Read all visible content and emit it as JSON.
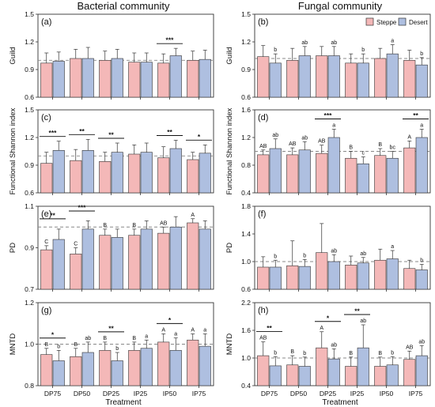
{
  "figure": {
    "col_titles": [
      "Bacterial community",
      "Fungal community"
    ],
    "xlabel": "Treatment",
    "legend": [
      {
        "label": "Steppe",
        "color": "#f4b8b8"
      },
      {
        "label": "Desert",
        "color": "#aebfe0"
      }
    ],
    "colors": {
      "steppe": "#f4b8b8",
      "desert": "#aebfe0",
      "edge": "#333333",
      "reference": "#888888"
    }
  },
  "chart_data": [
    {
      "type": "bar",
      "panel_label": "(a)",
      "ylabel": "Guild",
      "categories": [
        "DP75",
        "DP50",
        "DP25",
        "IP25",
        "IP50",
        "IP75"
      ],
      "ylim": [
        0.6,
        1.5
      ],
      "yticks": [
        0.6,
        0.9,
        1.2,
        1.5
      ],
      "yticklabels": [
        "0.6",
        "0.9",
        "1.2",
        "1.5"
      ],
      "reference": 1.0,
      "series": [
        {
          "name": "Steppe",
          "values": [
            0.97,
            1.02,
            1.0,
            0.98,
            0.97,
            1.0
          ],
          "errors": [
            0.11,
            0.1,
            0.1,
            0.1,
            0.1,
            0.1
          ],
          "letters": [
            "",
            "",
            "",
            "",
            "",
            ""
          ]
        },
        {
          "name": "Desert",
          "values": [
            0.99,
            1.02,
            1.02,
            0.98,
            1.05,
            1.01
          ],
          "errors": [
            0.1,
            0.12,
            0.1,
            0.1,
            0.08,
            0.1
          ],
          "letters": [
            "",
            "",
            "",
            "",
            "",
            ""
          ]
        }
      ],
      "significance": [
        {
          "index": 4,
          "label": "***"
        }
      ]
    },
    {
      "type": "bar",
      "panel_label": "(b)",
      "ylabel": "Guild",
      "categories": [
        "DP75",
        "DP50",
        "DP25",
        "IP25",
        "IP50",
        "IP75"
      ],
      "ylim": [
        0.6,
        1.5
      ],
      "yticks": [
        0.6,
        0.9,
        1.2,
        1.5
      ],
      "yticklabels": [
        "0.6",
        "0.9",
        "1.2",
        "1.5"
      ],
      "reference": 1.02,
      "series": [
        {
          "name": "Steppe",
          "values": [
            1.04,
            1.0,
            1.05,
            0.97,
            1.02,
            1.0
          ],
          "errors": [
            0.12,
            0.13,
            0.1,
            0.1,
            0.11,
            0.11
          ],
          "letters": [
            "",
            "",
            "",
            "",
            "",
            ""
          ]
        },
        {
          "name": "Desert",
          "values": [
            0.97,
            1.05,
            1.05,
            0.97,
            1.07,
            0.95
          ],
          "errors": [
            0.1,
            0.1,
            0.1,
            0.1,
            0.1,
            0.08
          ],
          "letters": [
            "b",
            "ab",
            "ab",
            "b",
            "a",
            "b"
          ]
        }
      ],
      "significance": []
    },
    {
      "type": "bar",
      "panel_label": "(c)",
      "ylabel": "Functional Shannon index",
      "categories": [
        "DP75",
        "DP50",
        "DP25",
        "IP25",
        "IP50",
        "IP75"
      ],
      "ylim": [
        0.6,
        1.5
      ],
      "yticks": [
        0.6,
        0.9,
        1.2,
        1.5
      ],
      "yticklabels": [
        "0.6",
        "0.9",
        "1.2",
        "1.5"
      ],
      "reference": 1.0,
      "series": [
        {
          "name": "Steppe",
          "values": [
            0.92,
            0.95,
            0.94,
            1.02,
            0.98,
            0.96
          ],
          "errors": [
            0.12,
            0.12,
            0.1,
            0.1,
            0.12,
            0.08
          ],
          "letters": [
            "",
            "",
            "",
            "",
            "",
            ""
          ]
        },
        {
          "name": "Desert",
          "values": [
            1.06,
            1.06,
            1.04,
            1.04,
            1.08,
            1.03
          ],
          "errors": [
            0.1,
            0.12,
            0.1,
            0.1,
            0.09,
            0.09
          ],
          "letters": [
            "",
            "",
            "",
            "",
            "",
            ""
          ]
        }
      ],
      "significance": [
        {
          "index": 0,
          "label": "***"
        },
        {
          "index": 1,
          "label": "**"
        },
        {
          "index": 2,
          "label": "**"
        },
        {
          "index": 4,
          "label": "**"
        },
        {
          "index": 5,
          "label": "*"
        }
      ]
    },
    {
      "type": "bar",
      "panel_label": "(d)",
      "ylabel": "Functional Shannon index",
      "categories": [
        "DP75",
        "DP50",
        "DP25",
        "IP25",
        "IP50",
        "IP75"
      ],
      "ylim": [
        0.4,
        1.6
      ],
      "yticks": [
        0.4,
        0.8,
        1.2,
        1.6
      ],
      "yticklabels": [
        "0.4",
        "0.8",
        "1.2",
        "1.6"
      ],
      "reference": 1.0,
      "series": [
        {
          "name": "Steppe",
          "values": [
            0.95,
            0.95,
            0.97,
            0.9,
            0.94,
            1.05
          ],
          "errors": [
            0.07,
            0.1,
            0.12,
            0.1,
            0.1,
            0.1
          ],
          "letters": [
            "AB",
            "AB",
            "AB",
            "B",
            "B",
            "A"
          ]
        },
        {
          "name": "Desert",
          "values": [
            1.04,
            1.02,
            1.2,
            0.82,
            0.9,
            1.2
          ],
          "errors": [
            0.14,
            0.12,
            0.12,
            0.1,
            0.1,
            0.12
          ],
          "letters": [
            "ab",
            "ab",
            "a",
            "c",
            "bc",
            "a"
          ]
        }
      ],
      "significance": [
        {
          "index": 2,
          "label": "***"
        },
        {
          "index": 5,
          "label": "**"
        }
      ]
    },
    {
      "type": "bar",
      "panel_label": "(e)",
      "ylabel": "PD",
      "categories": [
        "DP75",
        "DP50",
        "DP25",
        "IP25",
        "IP50",
        "IP75"
      ],
      "ylim": [
        0.7,
        1.1
      ],
      "yticks": [
        0.7,
        0.9,
        1.1
      ],
      "yticklabels": [
        "0.7",
        "0.9",
        "1.1"
      ],
      "reference": 1.0,
      "series": [
        {
          "name": "Steppe",
          "values": [
            0.89,
            0.87,
            0.96,
            0.96,
            0.97,
            1.02
          ],
          "errors": [
            0.02,
            0.03,
            0.03,
            0.03,
            0.03,
            0.02
          ],
          "letters": [
            "C",
            "C",
            "B",
            "B",
            "AB",
            "A"
          ]
        },
        {
          "name": "Desert",
          "values": [
            0.94,
            0.99,
            0.95,
            0.99,
            1.0,
            0.99
          ],
          "errors": [
            0.05,
            0.04,
            0.04,
            0.04,
            0.05,
            0.04
          ],
          "letters": [
            "",
            "",
            "",
            "",
            "",
            ""
          ]
        }
      ],
      "significance": [
        {
          "index": 0,
          "label": "**"
        },
        {
          "index": 1,
          "label": "***"
        }
      ]
    },
    {
      "type": "bar",
      "panel_label": "(f)",
      "ylabel": "PD",
      "categories": [
        "DP75",
        "DP50",
        "DP25",
        "IP25",
        "IP50",
        "IP75"
      ],
      "ylim": [
        0.6,
        1.8
      ],
      "yticks": [
        0.6,
        1.0,
        1.4,
        1.8
      ],
      "yticklabels": [
        "0.6",
        "1.0",
        "1.4",
        "1.8"
      ],
      "reference": 1.0,
      "series": [
        {
          "name": "Steppe",
          "values": [
            0.92,
            0.94,
            1.13,
            0.95,
            1.02,
            0.9
          ],
          "errors": [
            0.15,
            0.36,
            0.42,
            0.13,
            0.16,
            0.12
          ],
          "letters": [
            "",
            "",
            "",
            "",
            "",
            ""
          ]
        },
        {
          "name": "Desert",
          "values": [
            0.92,
            0.93,
            1.0,
            0.98,
            1.04,
            0.88
          ],
          "errors": [
            0.1,
            0.1,
            0.1,
            0.08,
            0.12,
            0.08
          ],
          "letters": [
            "b",
            "b",
            "ab",
            "ab",
            "a",
            "b"
          ]
        }
      ],
      "significance": []
    },
    {
      "type": "bar",
      "panel_label": "(g)",
      "ylabel": "MNTD",
      "categories": [
        "DP75",
        "DP50",
        "DP25",
        "IP25",
        "IP50",
        "IP75"
      ],
      "ylim": [
        0.8,
        1.2
      ],
      "yticks": [
        0.8,
        1.0,
        1.2
      ],
      "yticklabels": [
        "0.8",
        "1.0",
        "1.2"
      ],
      "reference": 1.0,
      "series": [
        {
          "name": "Steppe",
          "values": [
            0.95,
            0.94,
            0.97,
            0.97,
            1.01,
            1.02
          ],
          "errors": [
            0.03,
            0.04,
            0.04,
            0.04,
            0.04,
            0.03
          ],
          "letters": [
            "B",
            "B",
            "B",
            "B",
            "A",
            "A"
          ]
        },
        {
          "name": "Desert",
          "values": [
            0.92,
            0.96,
            0.92,
            0.98,
            0.97,
            0.99
          ],
          "errors": [
            0.05,
            0.05,
            0.04,
            0.04,
            0.06,
            0.06
          ],
          "letters": [
            "b",
            "ab",
            "b",
            "a",
            "a",
            "a"
          ]
        }
      ],
      "significance": [
        {
          "index": 0,
          "label": "*"
        },
        {
          "index": 2,
          "label": "**"
        },
        {
          "index": 4,
          "label": "*"
        }
      ]
    },
    {
      "type": "bar",
      "panel_label": "(h)",
      "ylabel": "MNTD",
      "categories": [
        "DP75",
        "DP50",
        "DP25",
        "IP25",
        "IP50",
        "IP75"
      ],
      "ylim": [
        0.4,
        2.2
      ],
      "yticks": [
        0.4,
        1.0,
        1.6,
        2.2
      ],
      "yticklabels": [
        "0.4",
        "1.0",
        "1.6",
        "2.2"
      ],
      "reference": 1.0,
      "series": [
        {
          "name": "Steppe",
          "values": [
            1.05,
            0.85,
            1.22,
            0.82,
            0.82,
            0.97
          ],
          "errors": [
            0.3,
            0.2,
            0.35,
            0.2,
            0.2,
            0.18
          ],
          "letters": [
            "AB",
            "B",
            "A",
            "B",
            "B",
            "AB"
          ]
        },
        {
          "name": "Desert",
          "values": [
            0.83,
            0.82,
            0.98,
            1.22,
            0.85,
            1.05
          ],
          "errors": [
            0.2,
            0.2,
            0.22,
            0.5,
            0.18,
            0.22
          ],
          "letters": [
            "b",
            "b",
            "ab",
            "ab",
            "b",
            "ab"
          ]
        }
      ],
      "significance": [
        {
          "index": 0,
          "label": "**"
        },
        {
          "index": 2,
          "label": "*"
        },
        {
          "index": 3,
          "label": "**"
        }
      ]
    }
  ]
}
